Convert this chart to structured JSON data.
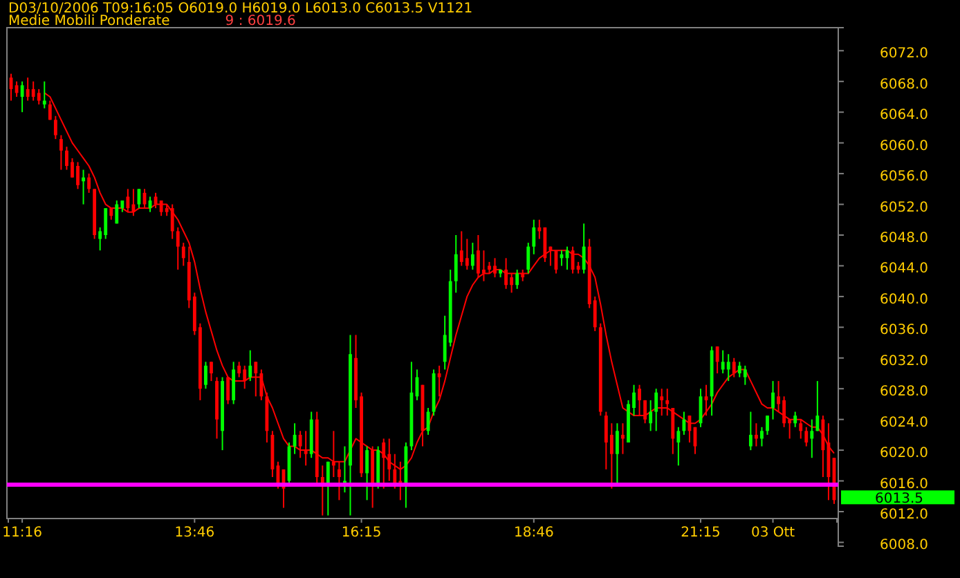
{
  "chart_data": {
    "type": "candlestick",
    "title": "D03/10/2006 T09:16:05 O6019.0 H6019.0 L6013.0 C6013.5 V1121",
    "categories": [
      null,
      null,
      "11:16",
      null,
      null,
      null,
      null,
      null,
      null,
      null,
      null,
      null,
      null,
      null,
      null,
      null,
      null,
      null,
      null,
      null,
      null,
      null,
      null,
      null,
      null,
      null,
      null,
      null,
      null,
      null,
      null,
      null,
      null,
      "13:46",
      null,
      null,
      null,
      null,
      null,
      null,
      null,
      null,
      null,
      null,
      null,
      null,
      null,
      null,
      null,
      null,
      null,
      null,
      null,
      null,
      null,
      null,
      null,
      null,
      null,
      null,
      null,
      null,
      null,
      "16:15",
      null,
      null,
      null,
      null,
      null,
      null,
      null,
      null,
      null,
      null,
      null,
      null,
      null,
      null,
      null,
      null,
      null,
      null,
      null,
      null,
      null,
      null,
      null,
      null,
      null,
      null,
      null,
      null,
      null,
      null,
      "18:46",
      null,
      null,
      null,
      null,
      null,
      null,
      null,
      null,
      null,
      null,
      null,
      null,
      null,
      null,
      null,
      null,
      null,
      null,
      null,
      null,
      null,
      null,
      null,
      null,
      null,
      null,
      null,
      null,
      null,
      "21:15",
      null,
      null,
      null,
      null,
      null,
      null,
      null,
      null,
      null,
      null,
      null,
      null,
      "03 Ott",
      null,
      null,
      null,
      null,
      null,
      null,
      null,
      null,
      null,
      null,
      null
    ],
    "ohlc": [
      [
        6068.5,
        6069,
        6065.5,
        6067
      ],
      [
        6067.5,
        6068,
        6066,
        6066.5
      ],
      [
        6066,
        6068,
        6064,
        6067.5
      ],
      [
        6067,
        6068.5,
        6065.5,
        6066
      ],
      [
        6067,
        6068,
        6065.5,
        6066
      ],
      [
        6066.5,
        6067,
        6065,
        6065.5
      ],
      [
        6065,
        6068,
        6064.5,
        6065.5
      ],
      [
        6065,
        6065.5,
        6063,
        6063
      ],
      [
        6063,
        6063.5,
        6060.5,
        6061
      ],
      [
        6060.5,
        6061,
        6056.5,
        6059
      ],
      [
        6059,
        6059.5,
        6056.5,
        6057
      ],
      [
        6057.5,
        6058,
        6055.5,
        6055.5
      ],
      [
        6057,
        6057.5,
        6054,
        6054.5
      ],
      [
        6055,
        6056.5,
        6052,
        6055.5
      ],
      [
        6055.5,
        6056,
        6053.5,
        6054
      ],
      [
        6054,
        6054,
        6047.5,
        6048
      ],
      [
        6047.5,
        6049,
        6046,
        6048.5
      ],
      [
        6048,
        6051.5,
        6047.5,
        6051.5
      ],
      [
        6051.5,
        6051.5,
        6050,
        6050.5
      ],
      [
        6049.5,
        6052.5,
        6049.5,
        6052
      ],
      [
        6051.5,
        6052.5,
        6051,
        6052.5
      ],
      [
        6053,
        6054,
        6051,
        6051.5
      ],
      [
        6052,
        6054,
        6050.5,
        6051
      ],
      [
        6052,
        6054,
        6051.5,
        6054
      ],
      [
        6053.5,
        6054,
        6051.5,
        6052
      ],
      [
        6051.5,
        6053,
        6051,
        6052.5
      ],
      [
        6053,
        6053.5,
        6051.5,
        6052
      ],
      [
        6052.5,
        6052.5,
        6050.5,
        6051
      ],
      [
        6051.5,
        6052,
        6050.5,
        6051
      ],
      [
        6051.5,
        6052,
        6047.5,
        6048.5
      ],
      [
        6048.5,
        6049,
        6043.5,
        6046.5
      ],
      [
        6046.5,
        6047,
        6044,
        6045
      ],
      [
        6044.5,
        6046.5,
        6038.5,
        6039.5
      ],
      [
        6040,
        6040.5,
        6035,
        6035.5
      ],
      [
        6036,
        6036.5,
        6026.5,
        6028
      ],
      [
        6028.5,
        6031.5,
        6028,
        6031
      ],
      [
        6031.5,
        6031.5,
        6029,
        6030
      ],
      [
        6029,
        6029.5,
        6021.5,
        6024
      ],
      [
        6022.5,
        6029.5,
        6020,
        6029
      ],
      [
        6029.5,
        6029.5,
        6026,
        6026.5
      ],
      [
        6026.5,
        6031.5,
        6026,
        6030.5
      ],
      [
        6031,
        6031.5,
        6029.5,
        6030
      ],
      [
        6030.5,
        6031,
        6028,
        6029
      ],
      [
        6029.5,
        6033,
        6029,
        6031
      ],
      [
        6031.5,
        6031.5,
        6027,
        6030
      ],
      [
        6030,
        6030.5,
        6026.5,
        6027
      ],
      [
        6027,
        6027.5,
        6021,
        6022.5
      ],
      [
        6022,
        6022.5,
        6016.5,
        6017.5
      ],
      [
        6018,
        6018.5,
        6015,
        6015.5
      ],
      [
        6017.5,
        6017.5,
        6012.5,
        6015
      ],
      [
        6016,
        6021,
        6015.5,
        6020.5
      ],
      [
        6020.5,
        6023.5,
        6019.5,
        6022
      ],
      [
        6022,
        6022.5,
        6019,
        6020.5
      ],
      [
        6020,
        6022.5,
        6018,
        6019.5
      ],
      [
        6019.5,
        6025,
        6019,
        6024
      ],
      [
        6024,
        6025,
        6015.5,
        6016.5
      ],
      [
        6016.5,
        6018,
        6011.5,
        6015.5
      ],
      [
        6015.5,
        6018.5,
        6011.5,
        6018.5
      ],
      [
        6018.5,
        6022.5,
        6016.5,
        6018
      ],
      [
        6017.5,
        6018.5,
        6013.5,
        6016.5
      ],
      [
        6015.5,
        6020.5,
        6014.5,
        6016
      ],
      [
        6018,
        6035,
        6011.5,
        6032.5
      ],
      [
        6032,
        6035,
        6025.5,
        6026.5
      ],
      [
        6027,
        6027.5,
        6016.5,
        6017
      ],
      [
        6017,
        6020.5,
        6013.5,
        6020
      ],
      [
        6020,
        6020.5,
        6012.5,
        6015.5
      ],
      [
        6015.5,
        6020.5,
        6015,
        6020
      ],
      [
        6021,
        6021.5,
        6015,
        6019
      ],
      [
        6019.5,
        6021.5,
        6016,
        6017.5
      ],
      [
        6017.5,
        6019.5,
        6015,
        6015.5
      ],
      [
        6016,
        6018.5,
        6013.5,
        6015.5
      ],
      [
        6015.5,
        6021,
        6012.5,
        6020.5
      ],
      [
        6020.5,
        6031.5,
        6020,
        6027.5
      ],
      [
        6027,
        6030.5,
        6026.5,
        6029.5
      ],
      [
        6028.5,
        6028.5,
        6020.5,
        6022.5
      ],
      [
        6022.5,
        6025.5,
        6022,
        6025
      ],
      [
        6025,
        6030.5,
        6024.5,
        6030
      ],
      [
        6030,
        6031,
        6027,
        6029.5
      ],
      [
        6031.5,
        6037.5,
        6030.5,
        6035
      ],
      [
        6034,
        6043.5,
        6033.5,
        6042
      ],
      [
        6042,
        6048,
        6040.5,
        6045.5
      ],
      [
        6046,
        6048.5,
        6044,
        6044.5
      ],
      [
        6045,
        6047.5,
        6043.5,
        6044
      ],
      [
        6044,
        6047,
        6043.5,
        6045.5
      ],
      [
        6046,
        6048,
        6042.5,
        6043
      ],
      [
        6043.5,
        6046,
        6042,
        6043
      ],
      [
        6044,
        6044.5,
        6043,
        6043.5
      ],
      [
        6044,
        6045,
        6042.5,
        6043
      ],
      [
        6043,
        6043.5,
        6042.5,
        6043.5
      ],
      [
        6043.5,
        6045,
        6041,
        6041.5
      ],
      [
        6042.5,
        6043,
        6040.5,
        6041.5
      ],
      [
        6041.5,
        6043.5,
        6041,
        6043
      ],
      [
        6043,
        6043.5,
        6042,
        6042.5
      ],
      [
        6043.5,
        6047,
        6043,
        6046.5
      ],
      [
        6046.5,
        6050,
        6045.5,
        6049
      ],
      [
        6049,
        6050,
        6047.5,
        6048.5
      ],
      [
        6049,
        6049,
        6044.5,
        6045
      ],
      [
        6046.5,
        6046.5,
        6044,
        6046
      ],
      [
        6046,
        6046,
        6043,
        6043.5
      ],
      [
        6045,
        6046,
        6044,
        6045.5
      ],
      [
        6045,
        6046.5,
        6043.5,
        6046
      ],
      [
        6046,
        6046.5,
        6043,
        6043.5
      ],
      [
        6044,
        6044.5,
        6043,
        6043.5
      ],
      [
        6043.5,
        6049.5,
        6043,
        6046.5
      ],
      [
        6046.5,
        6047.5,
        6038.5,
        6039
      ],
      [
        6039.5,
        6040,
        6035.5,
        6036
      ],
      [
        6036,
        6036.5,
        6024.5,
        6025
      ],
      [
        6024.5,
        6025,
        6017.5,
        6021
      ],
      [
        6022,
        6023.5,
        6015,
        6019.5
      ],
      [
        6019.5,
        6023.5,
        6015.5,
        6022.5
      ],
      [
        6022,
        6023.5,
        6019.5,
        6021.5
      ],
      [
        6021,
        6026.5,
        6021,
        6026
      ],
      [
        6025.5,
        6028.5,
        6024.5,
        6027.5
      ],
      [
        6028,
        6028.5,
        6024.5,
        6026.5
      ],
      [
        6026.5,
        6026.5,
        6023.5,
        6024
      ],
      [
        6023.5,
        6026.5,
        6022.5,
        6025
      ],
      [
        6025,
        6028,
        6022.5,
        6027.5
      ],
      [
        6027,
        6028,
        6024.5,
        6026.5
      ],
      [
        6026.5,
        6028,
        6024.5,
        6026
      ],
      [
        6025.5,
        6025.5,
        6019.5,
        6021.5
      ],
      [
        6021,
        6023,
        6018,
        6022.5
      ],
      [
        6022.5,
        6025,
        6022,
        6024
      ],
      [
        6024.5,
        6024.5,
        6021,
        6022.5
      ],
      [
        6023,
        6023,
        6019.5,
        6020.5
      ],
      [
        6023.5,
        6028,
        6023,
        6027
      ],
      [
        6027,
        6028.5,
        6024.5,
        6026.5
      ],
      [
        6027,
        6033.5,
        6024.5,
        6033
      ],
      [
        6033.5,
        6033.5,
        6030,
        6031.5
      ],
      [
        6030.5,
        6033,
        6030,
        6031.5
      ],
      [
        6030.5,
        6032.5,
        6029,
        6031.5
      ],
      [
        6031.5,
        6032,
        6029.5,
        6030
      ],
      [
        6030,
        6031.5,
        6029.5,
        6031
      ],
      [
        6029.5,
        6031,
        6028.5,
        6030.5
      ],
      [
        6020.5,
        6025,
        6020,
        6022
      ],
      [
        6022,
        6023.5,
        6020.5,
        6021.5
      ],
      [
        6021.5,
        6023,
        6020.5,
        6022.5
      ],
      [
        6022.5,
        6024.5,
        6022,
        6024.5
      ],
      [
        6025.5,
        6029,
        6024,
        6027.5
      ],
      [
        6027,
        6029,
        6025,
        6026
      ],
      [
        6026.5,
        6027,
        6023,
        6023.5
      ],
      [
        6024,
        6024,
        6021.5,
        6023.5
      ],
      [
        6023.5,
        6025,
        6023,
        6024.5
      ],
      [
        6023.5,
        6024,
        6021.5,
        6022.5
      ],
      [
        6022.5,
        6023,
        6020.5,
        6021
      ],
      [
        6021.5,
        6024,
        6019,
        6022.5
      ],
      [
        6022.5,
        6029,
        6022.5,
        6024.5
      ],
      [
        6024,
        6024.5,
        6016.5,
        6020
      ],
      [
        6021,
        6023.5,
        6013.5,
        6016.5
      ],
      [
        6019,
        6019,
        6013,
        6013.5
      ]
    ],
    "series": [
      {
        "type": "line",
        "name": "Medie Mobili Ponderate",
        "color": "#ff0000",
        "values": [
          null,
          null,
          null,
          null,
          null,
          null,
          6066.5,
          6066,
          6064.5,
          6063,
          6061.5,
          6060,
          6059,
          6058,
          6057,
          6055.5,
          6053.5,
          6052,
          6051.5,
          6051.5,
          6051.5,
          6051,
          6051,
          6051.5,
          6051.5,
          6051.5,
          6052,
          6052,
          6052,
          6051,
          6050,
          6048.5,
          6047,
          6044.5,
          6041,
          6038,
          6035.5,
          6033,
          6031,
          6029.5,
          6029,
          6029,
          6029,
          6029.5,
          6029.5,
          6029.5,
          6027,
          6025.5,
          6023.5,
          6021.5,
          6020.5,
          6020.5,
          6020,
          6020,
          6020,
          6019.5,
          6019,
          6019,
          6018.5,
          6018.5,
          6018.5,
          6020,
          6021.5,
          6021,
          6020.5,
          6020,
          6020,
          6019.5,
          6018.5,
          6018,
          6017.5,
          6018,
          6019,
          6021,
          6022.5,
          6023,
          6025,
          6026.5,
          6029,
          6032,
          6035,
          6037.5,
          6040,
          6041.5,
          6042.5,
          6043,
          6043,
          6043.5,
          6043.5,
          6043,
          6043,
          6043,
          6043,
          6043,
          6044,
          6045,
          6045.5,
          6046,
          6046,
          6046,
          6046,
          6045.5,
          6045.5,
          6045,
          6044,
          6042.5,
          6039,
          6035,
          6031.5,
          6028.5,
          6025.5,
          6025,
          6024.5,
          6024.5,
          6024.5,
          6025,
          6025.5,
          6025.5,
          6025.5,
          6025,
          6024.5,
          6024,
          6023.5,
          6023.5,
          6024,
          6025,
          6026,
          6027.5,
          6028.5,
          6029.5,
          6030,
          6030.5,
          6030.5,
          6029,
          6027.5,
          6026,
          6025.5,
          6025.5,
          6025,
          6024.5,
          6024,
          6024,
          6024,
          6023.5,
          6023,
          6023,
          6022,
          6020.5,
          6019.6
        ]
      }
    ],
    "ylim": [
      6007.5,
      6075
    ],
    "yticks": [
      {
        "value": 6008,
        "label": "6008.0"
      },
      {
        "value": 6012,
        "label": "6012.0"
      },
      {
        "value": 6016,
        "label": "6016.0"
      },
      {
        "value": 6020,
        "label": "6020.0"
      },
      {
        "value": 6024,
        "label": "6024.0"
      },
      {
        "value": 6028,
        "label": "6028.0"
      },
      {
        "value": 6032,
        "label": "6032.0"
      },
      {
        "value": 6036,
        "label": "6036.0"
      },
      {
        "value": 6040,
        "label": "6040.0"
      },
      {
        "value": 6044,
        "label": "6044.0"
      },
      {
        "value": 6048,
        "label": "6048.0"
      },
      {
        "value": 6052,
        "label": "6052.0"
      },
      {
        "value": 6056,
        "label": "6056.0"
      },
      {
        "value": 6060,
        "label": "6060.0"
      },
      {
        "value": 6064,
        "label": "6064.0"
      },
      {
        "value": 6068,
        "label": "6068.0"
      },
      {
        "value": 6072,
        "label": "6072.0"
      }
    ],
    "ref_lines": [
      {
        "axis": "y",
        "value": 6015.5,
        "color": "#ff00ff"
      }
    ],
    "annotations": [
      "9 : 6019.6",
      "6013.5"
    ],
    "grid": false,
    "legend": "top left"
  }
}
